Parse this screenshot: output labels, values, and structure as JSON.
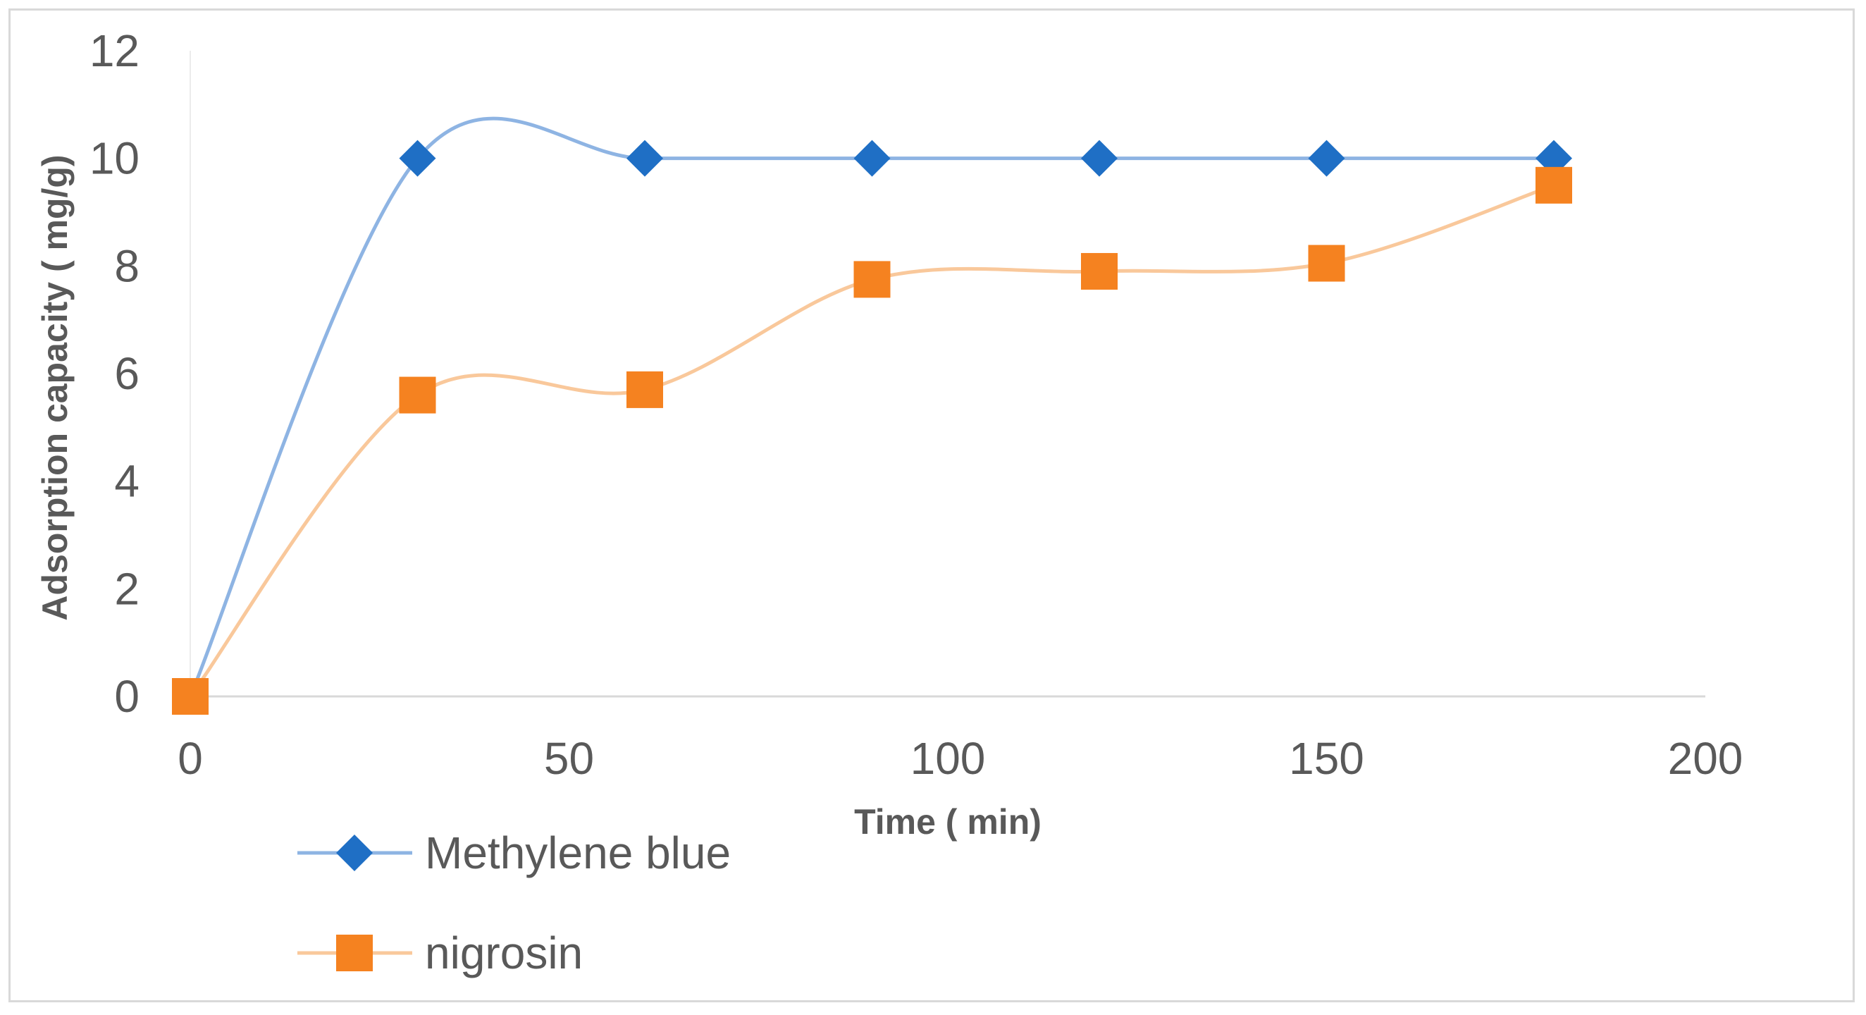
{
  "chart_data": {
    "type": "line",
    "title": "",
    "xlabel": "Time ( min)",
    "ylabel": "Adsorption capacity ( mg/g)",
    "xlim": [
      0,
      200
    ],
    "ylim": [
      0,
      12
    ],
    "xticks": [
      0,
      50,
      100,
      150,
      200
    ],
    "yticks": [
      0,
      2,
      4,
      6,
      8,
      10,
      12
    ],
    "grid": "horizontal",
    "smoothed": true,
    "legend_position": "bottom-left",
    "series": [
      {
        "name": "Methylene blue",
        "marker": "diamond",
        "line_color": "#8eb4e3",
        "marker_color": "#1f6fc5",
        "x": [
          0,
          30,
          60,
          90,
          120,
          150,
          180
        ],
        "y": [
          0,
          10,
          10,
          10,
          10,
          10,
          10
        ]
      },
      {
        "name": "nigrosin",
        "marker": "square",
        "line_color": "#f9c89b",
        "marker_color": "#f58220",
        "x": [
          0,
          30,
          60,
          90,
          120,
          150,
          180
        ],
        "y": [
          0,
          5.6,
          5.7,
          7.75,
          7.9,
          8.05,
          9.5
        ]
      }
    ]
  }
}
